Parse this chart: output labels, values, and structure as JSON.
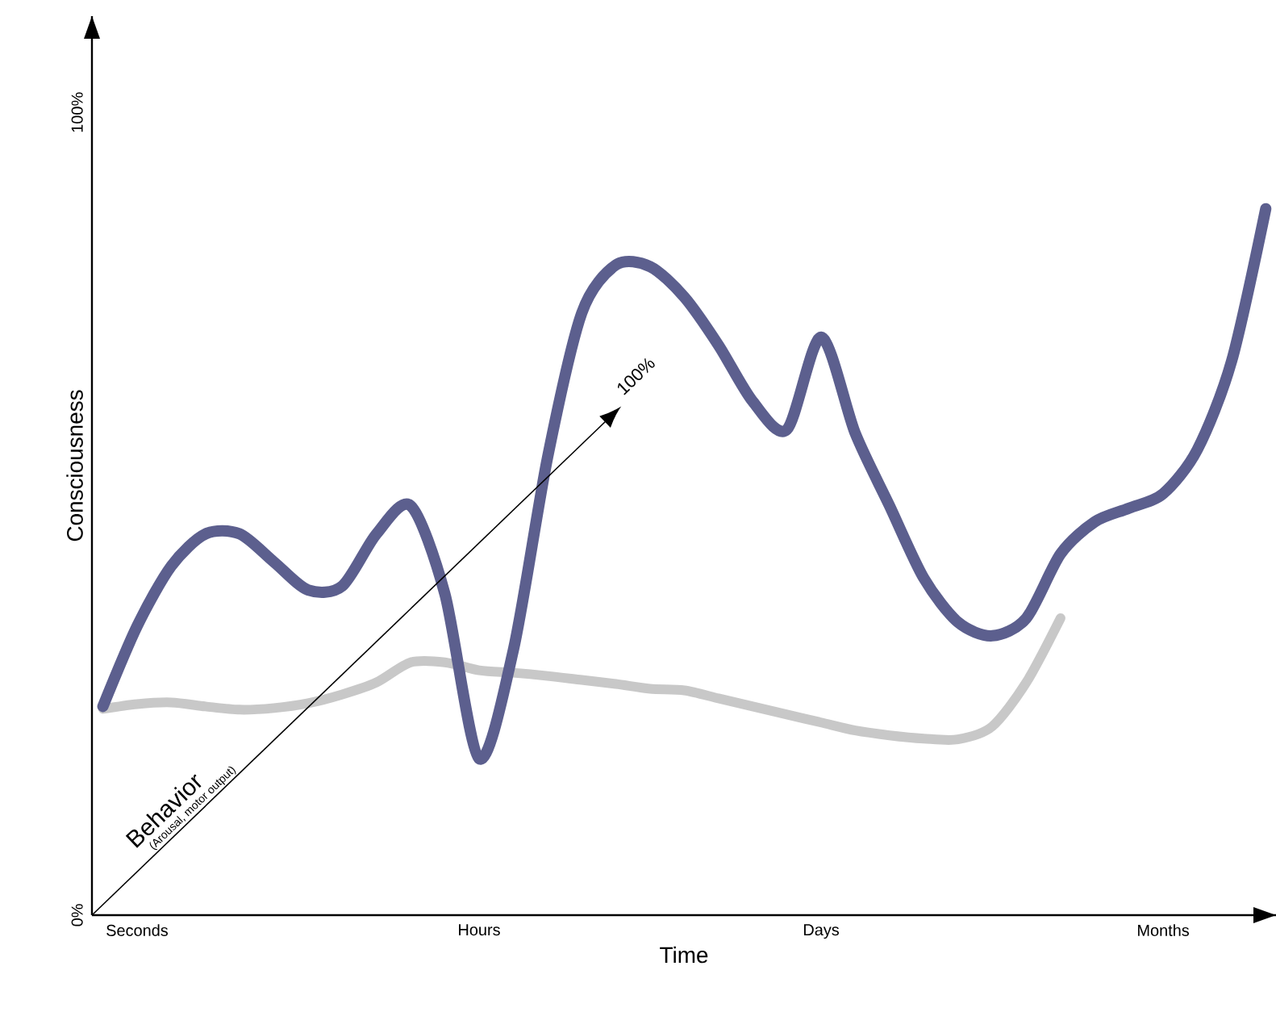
{
  "chart_data": {
    "type": "line",
    "xlabel": "Time",
    "ylabel": "Consciousness",
    "ylim": [
      0,
      112
    ],
    "categories": [
      null,
      "Seconds",
      null,
      null,
      null,
      null,
      null,
      null,
      null,
      null,
      null,
      "Hours",
      null,
      null,
      null,
      null,
      null,
      null,
      null,
      null,
      null,
      "Days",
      null,
      null,
      null,
      null,
      null,
      null,
      null,
      null,
      null,
      "Months",
      null,
      null,
      null
    ],
    "yticks": [
      {
        "value": 0,
        "label": "0%"
      },
      {
        "value": 100,
        "label": "100%"
      }
    ],
    "marker": "none",
    "line_style": "solid",
    "annotations": [
      "Behavior",
      "(Arousal, motor output)",
      "100%"
    ],
    "series": [
      {
        "color": "#c8c8c8",
        "values": [
          25.7,
          26.3,
          26.5,
          26,
          25.6,
          25.8,
          26.4,
          27.5,
          29,
          31.5,
          31.5,
          30.5,
          30.2,
          29.8,
          29.3,
          28.8,
          28.2,
          28,
          27,
          26,
          25,
          24,
          23,
          22.4,
          22,
          21.9,
          23.5,
          29,
          37,
          null,
          null,
          null,
          null,
          null,
          null
        ]
      },
      {
        "color": "#5c5f8e",
        "values": [
          26,
          36,
          43.5,
          47.5,
          47.5,
          44,
          40.5,
          41,
          47.5,
          51,
          40,
          19.5,
          33,
          57,
          75,
          81,
          80.8,
          77,
          71,
          64,
          60.5,
          72,
          60,
          51,
          42,
          36.5,
          34.8,
          37,
          45,
          49,
          50.7,
          52.5,
          58,
          69,
          88
        ]
      }
    ]
  }
}
